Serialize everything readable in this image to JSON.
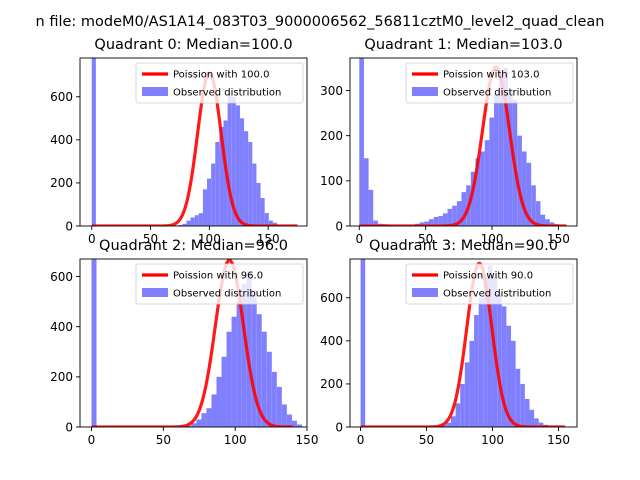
{
  "figure": {
    "suptitle": "n file: modeM0/AS1A14_083T03_9000006562_56811cztM0_level2_quad_clean"
  },
  "colors": {
    "hist": "#8080ff",
    "fit": "#ff0000",
    "axes": "#000000"
  },
  "chart_data": [
    {
      "type": "bar+line",
      "title": "Quadrant 0: Median=100.0",
      "xlim": [
        -10,
        183
      ],
      "ylim": [
        0,
        780
      ],
      "xticks": [
        0,
        50,
        100,
        150
      ],
      "yticks": [
        0,
        200,
        400,
        600
      ],
      "bin_width": 3.5,
      "spike": {
        "x": 0,
        "height": 780
      },
      "hist_start": 73.5,
      "hist_counts": [
        5,
        10,
        25,
        40,
        50,
        60,
        170,
        220,
        290,
        390,
        460,
        490,
        620,
        600,
        560,
        500,
        440,
        390,
        290,
        200,
        130,
        60,
        25,
        15,
        5
      ],
      "fit": {
        "lambda": 100.0,
        "peak": 710,
        "sigma": 10.0,
        "xmax": 175
      },
      "legend": [
        "Poission with 100.0",
        "Observed distribution"
      ]
    },
    {
      "type": "bar+line",
      "title": "Quadrant 1: Median=103.0",
      "xlim": [
        -7,
        164
      ],
      "ylim": [
        0,
        372
      ],
      "xticks": [
        0,
        50,
        100,
        150
      ],
      "yticks": [
        0,
        100,
        200,
        300
      ],
      "bin_width": 3.5,
      "spike": {
        "x": 0,
        "height": 372
      },
      "extra_bins": [
        [
          3.5,
          150
        ],
        [
          7,
          80
        ],
        [
          10.5,
          12
        ],
        [
          14,
          5
        ],
        [
          17.5,
          4
        ],
        [
          21,
          3
        ]
      ],
      "hist_start": 42,
      "hist_counts": [
        5,
        8,
        10,
        15,
        20,
        22,
        28,
        38,
        45,
        55,
        75,
        90,
        120,
        150,
        165,
        190,
        240,
        290,
        330,
        350,
        300,
        280,
        200,
        165,
        140,
        90,
        55,
        25,
        15,
        8,
        4
      ],
      "fit": {
        "lambda": 103.0,
        "peak": 352,
        "sigma": 10.1,
        "xmax": 156
      },
      "legend": [
        "Poission with 103.0",
        "Observed distribution"
      ]
    },
    {
      "type": "bar+line",
      "title": "Quadrant 2: Median=96.0",
      "xlim": [
        -8,
        150
      ],
      "ylim": [
        0,
        670
      ],
      "xticks": [
        0,
        50,
        100,
        150
      ],
      "yticks": [
        0,
        200,
        400,
        600
      ],
      "bin_width": 3.5,
      "spike": {
        "x": 0,
        "height": 670
      },
      "hist_start": 66,
      "hist_counts": [
        5,
        15,
        30,
        55,
        75,
        130,
        200,
        280,
        380,
        440,
        500,
        570,
        620,
        545,
        450,
        380,
        300,
        220,
        160,
        90,
        50,
        25,
        10
      ],
      "fit": {
        "lambda": 96.0,
        "peak": 665,
        "sigma": 9.8,
        "xmax": 140
      },
      "legend": [
        "Poission with 96.0",
        "Observed distribution"
      ]
    },
    {
      "type": "bar+line",
      "title": "Quadrant 3: Median=90.0",
      "xlim": [
        -8,
        164
      ],
      "ylim": [
        0,
        780
      ],
      "xticks": [
        0,
        50,
        100,
        150
      ],
      "yticks": [
        0,
        200,
        400,
        600
      ],
      "bin_width": 3.5,
      "spike": {
        "x": 0,
        "height": 780
      },
      "hist_start": 58,
      "hist_counts": [
        5,
        10,
        20,
        50,
        110,
        200,
        300,
        400,
        520,
        600,
        700,
        750,
        700,
        620,
        560,
        470,
        400,
        270,
        200,
        130,
        80,
        40,
        20,
        10,
        5
      ],
      "fit": {
        "lambda": 90.0,
        "peak": 760,
        "sigma": 9.5,
        "xmax": 155
      },
      "legend": [
        "Poission with 90.0",
        "Observed distribution"
      ]
    }
  ]
}
